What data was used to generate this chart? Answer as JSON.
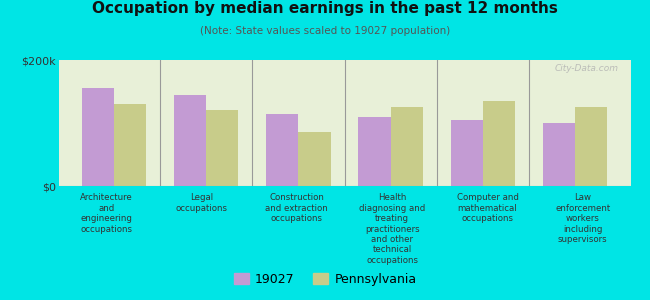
{
  "title": "Occupation by median earnings in the past 12 months",
  "subtitle": "(Note: State values scaled to 19027 population)",
  "background_color": "#00e5e5",
  "plot_bg_color": "#e8f0d8",
  "categories": [
    "Architecture\nand\nengineering\noccupations",
    "Legal\noccupations",
    "Construction\nand extraction\noccupations",
    "Health\ndiagnosing and\ntreating\npractitioners\nand other\ntechnical\noccupations",
    "Computer and\nmathematical\noccupations",
    "Law\nenforcement\nworkers\nincluding\nsupervisors"
  ],
  "values_19027": [
    155000,
    145000,
    115000,
    110000,
    105000,
    100000
  ],
  "values_pennsylvania": [
    130000,
    120000,
    85000,
    125000,
    135000,
    125000
  ],
  "color_19027": "#c39bd3",
  "color_pennsylvania": "#c8cc8a",
  "ylim": [
    0,
    200000
  ],
  "ytick_labels": [
    "$0",
    "$200k"
  ],
  "legend_label_19027": "19027",
  "legend_label_pa": "Pennsylvania",
  "bar_width": 0.35,
  "watermark": "City-Data.com"
}
